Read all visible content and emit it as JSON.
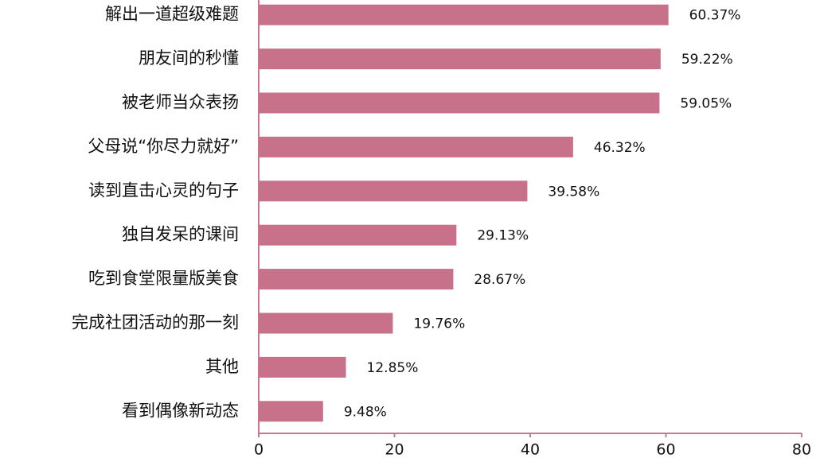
{
  "chart_data": {
    "type": "bar",
    "orientation": "horizontal",
    "categories": [
      "解出一道超级难题",
      "朋友间的秒懂",
      "被老师当众表扬",
      "父母说“你尽力就好”",
      "读到直击心灵的句子",
      "独自发呆的课间",
      "吃到食堂限量版美食",
      "完成社团活动的那一刻",
      "其他",
      "看到偶像新动态"
    ],
    "values": [
      60.37,
      59.22,
      59.05,
      46.32,
      39.58,
      29.13,
      28.67,
      19.76,
      12.85,
      9.48
    ],
    "value_labels": [
      "60.37%",
      "59.22%",
      "59.05%",
      "46.32%",
      "39.58%",
      "29.13%",
      "28.67%",
      "19.76%",
      "12.85%",
      "9.48%"
    ],
    "color": "#c8718a",
    "xlim": [
      0,
      80
    ],
    "xticks": [
      0,
      20,
      40,
      60,
      80
    ]
  }
}
